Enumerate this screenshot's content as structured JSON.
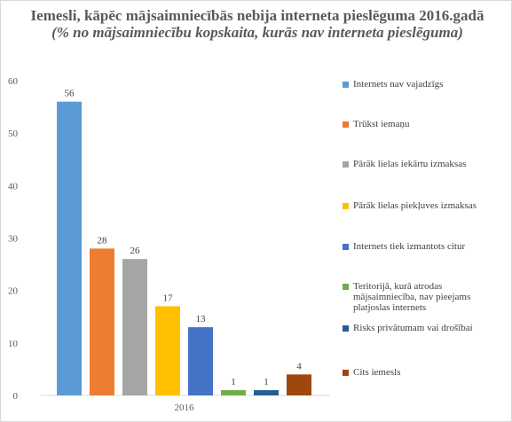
{
  "title": {
    "main": "Iemesli, kāpēc mājsaimniecībās nebija interneta pieslēguma 2016.gadā",
    "sub": "(% no mājsaimniecību kopskaita, kurās nav interneta pieslēguma)"
  },
  "chart_data": {
    "type": "bar",
    "categories": [
      "2016"
    ],
    "ylim": [
      0,
      60
    ],
    "yticks": [
      0,
      10,
      20,
      30,
      40,
      50,
      60
    ],
    "grid": false,
    "legend_position": "right",
    "series": [
      {
        "name": "Internets nav vajadzīgs",
        "values": [
          56
        ],
        "color": "#5b9bd5"
      },
      {
        "name": "Trūkst iemaņu",
        "values": [
          28
        ],
        "color": "#ed7d31"
      },
      {
        "name": "Pārāk lielas iekārtu izmaksas",
        "values": [
          26
        ],
        "color": "#a5a5a5"
      },
      {
        "name": "Pārāk lielas piekļuves izmaksas",
        "values": [
          17
        ],
        "color": "#ffc000"
      },
      {
        "name": "Internets tiek izmantots citur",
        "values": [
          13
        ],
        "color": "#4472c4"
      },
      {
        "name": "Teritorijā, kurā atrodas mājsaimniecība, nav pieejams platjoslas internets",
        "values": [
          1
        ],
        "color": "#70ad47"
      },
      {
        "name": "Risks privātumam vai drošībai",
        "values": [
          1
        ],
        "color": "#255e91"
      },
      {
        "name": "Cits iemesls",
        "values": [
          4
        ],
        "color": "#9e480e"
      }
    ]
  }
}
